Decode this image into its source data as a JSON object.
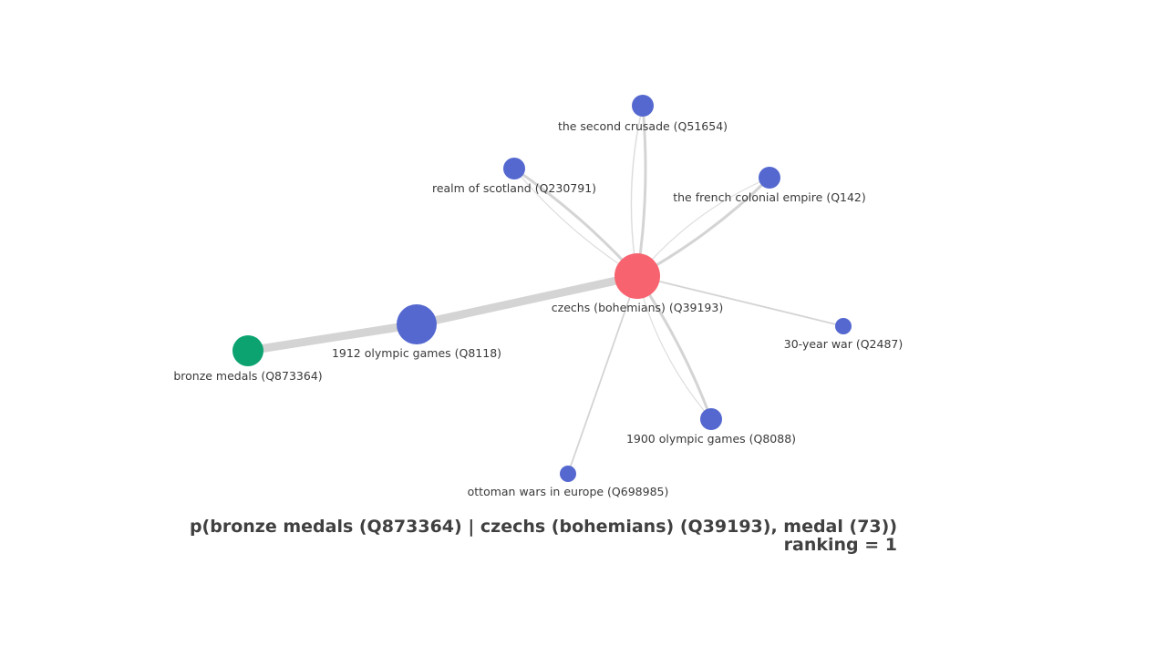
{
  "graph": {
    "nodes": [
      {
        "id": "n_czechs",
        "label": "czechs (bohemians) (Q39193)",
        "color": "#f7636e",
        "role": "query"
      },
      {
        "id": "n_1912",
        "label": "1912 olympic games (Q8118)",
        "color": "#5468cf",
        "role": "context"
      },
      {
        "id": "n_bronze",
        "label": "bronze medals (Q873364)",
        "color": "#0ca370",
        "role": "answer"
      },
      {
        "id": "n_crusade",
        "label": "the second crusade (Q51654)",
        "color": "#5468cf",
        "role": "context"
      },
      {
        "id": "n_scotland",
        "label": "realm of scotland (Q230791)",
        "color": "#5468cf",
        "role": "context"
      },
      {
        "id": "n_french",
        "label": "the french colonial empire (Q142)",
        "color": "#5468cf",
        "role": "context"
      },
      {
        "id": "n_30year",
        "label": "30-year war (Q2487)",
        "color": "#5468cf",
        "role": "context"
      },
      {
        "id": "n_1900",
        "label": "1900 olympic games (Q8088)",
        "color": "#5468cf",
        "role": "context"
      },
      {
        "id": "n_ottoman",
        "label": "ottoman wars in europe (Q698985)",
        "color": "#5468cf",
        "role": "context"
      }
    ],
    "edges": [
      {
        "from": "n_czechs",
        "to": "n_1912"
      },
      {
        "from": "n_1912",
        "to": "n_bronze"
      },
      {
        "from": "n_czechs",
        "to": "n_crusade"
      },
      {
        "from": "n_czechs",
        "to": "n_crusade"
      },
      {
        "from": "n_czechs",
        "to": "n_scotland"
      },
      {
        "from": "n_czechs",
        "to": "n_scotland"
      },
      {
        "from": "n_czechs",
        "to": "n_french"
      },
      {
        "from": "n_czechs",
        "to": "n_french"
      },
      {
        "from": "n_czechs",
        "to": "n_30year"
      },
      {
        "from": "n_czechs",
        "to": "n_1900"
      },
      {
        "from": "n_czechs",
        "to": "n_1900"
      },
      {
        "from": "n_czechs",
        "to": "n_ottoman"
      }
    ],
    "edge_color": "#d4d4d4"
  },
  "caption": {
    "query": "p(bronze medals (Q873364) | czechs (bohemians) (Q39193), medal (73))",
    "ranking": "ranking = 1"
  }
}
